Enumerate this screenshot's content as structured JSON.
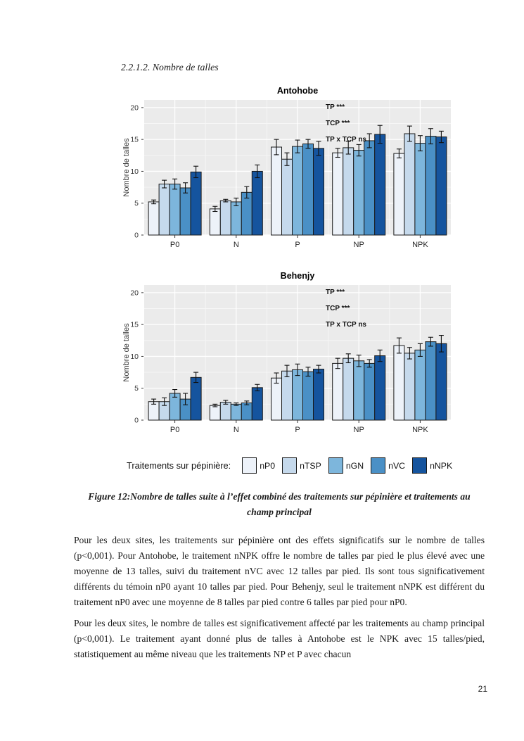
{
  "page": {
    "heading": "2.2.1.2. Nombre de talles",
    "page_number": "21"
  },
  "legend": {
    "label": "Traitements sur pépinière:",
    "items": [
      {
        "label": "nP0",
        "color": "#EDF2F9"
      },
      {
        "label": "nTSP",
        "color": "#C5D9EC"
      },
      {
        "label": "nGN",
        "color": "#7DB6DC"
      },
      {
        "label": "nVC",
        "color": "#4A90C6"
      },
      {
        "label": "nNPK",
        "color": "#15549E"
      }
    ]
  },
  "caption": {
    "text": "Figure 12:Nombre de talles suite à l’effet combiné des traitements sur pépinière et traitements au champ principal"
  },
  "paragraphs": [
    "Pour les deux sites, les traitements sur pépinière ont des effets significatifs sur le nombre de talles (p<0,001). Pour Antohobe, le traitement nNPK offre le nombre de talles par pied le plus élevé avec une moyenne de 13 talles, suivi du traitement nVC avec 12 talles par pied. Ils sont tous significativement différents du témoin nP0 ayant 10 talles par pied. Pour Behenjy, seul le traitement nNPK est différent du traitement nP0 avec une moyenne de 8 talles par pied contre 6 talles par pied pour nP0.",
    "Pour les deux sites, le nombre de talles est significativement affecté par les traitements au champ principal (p<0,001). Le traitement ayant donné plus de talles à Antohobe est le NPK avec 15 talles/pied, statistiquement au même niveau que les traitements NP et P avec chacun"
  ],
  "chart_data": [
    {
      "type": "bar",
      "title": "Antohobe",
      "ylabel": "Nombre de talles",
      "xlabel": "",
      "categories": [
        "P0",
        "N",
        "P",
        "NP",
        "NPK"
      ],
      "yticks": [
        0,
        5,
        10,
        15,
        20
      ],
      "ylim": [
        0,
        21.2
      ],
      "grid": true,
      "panel_color": "#EBEBEB",
      "legend_position": "bottom-shared",
      "annotations": [
        "TP ***",
        "TCP ***",
        "TP x TCP ns"
      ],
      "series": [
        {
          "name": "nP0",
          "values": [
            5.2,
            4.1,
            13.8,
            12.9,
            12.8
          ],
          "errors": [
            0.3,
            0.4,
            1.2,
            0.7,
            0.7
          ]
        },
        {
          "name": "nTSP",
          "values": [
            8.0,
            5.4,
            11.9,
            13.7,
            15.9
          ],
          "errors": [
            0.6,
            0.2,
            1.0,
            1.0,
            1.2
          ]
        },
        {
          "name": "nGN",
          "values": [
            8.0,
            5.2,
            13.9,
            13.3,
            14.4
          ],
          "errors": [
            0.8,
            0.6,
            1.0,
            0.9,
            1.2
          ]
        },
        {
          "name": "nVC",
          "values": [
            7.4,
            6.7,
            14.3,
            14.8,
            15.5
          ],
          "errors": [
            0.8,
            0.9,
            0.7,
            1.1,
            1.2
          ]
        },
        {
          "name": "nNPK",
          "values": [
            9.9,
            10.0,
            13.6,
            15.8,
            15.4
          ],
          "errors": [
            0.9,
            1.0,
            1.1,
            1.4,
            0.9
          ]
        }
      ]
    },
    {
      "type": "bar",
      "title": "Behenjy",
      "ylabel": "Nombre de talles",
      "xlabel": "",
      "categories": [
        "P0",
        "N",
        "P",
        "NP",
        "NPK"
      ],
      "yticks": [
        0,
        5,
        10,
        15,
        20
      ],
      "ylim": [
        0,
        21.2
      ],
      "grid": true,
      "panel_color": "#EBEBEB",
      "legend_position": "bottom-shared",
      "annotations": [
        "TP ***",
        "TCP ***",
        "TP x TCP ns"
      ],
      "series": [
        {
          "name": "nP0",
          "values": [
            2.9,
            2.3,
            6.6,
            8.9,
            11.7
          ],
          "errors": [
            0.4,
            0.2,
            0.8,
            0.8,
            1.2
          ]
        },
        {
          "name": "nTSP",
          "values": [
            2.9,
            2.8,
            7.7,
            9.7,
            10.5
          ],
          "errors": [
            0.6,
            0.3,
            0.9,
            0.7,
            0.9
          ]
        },
        {
          "name": "nGN",
          "values": [
            4.2,
            2.5,
            7.9,
            9.3,
            11.0
          ],
          "errors": [
            0.6,
            0.2,
            0.9,
            0.9,
            1.0
          ]
        },
        {
          "name": "nVC",
          "values": [
            3.3,
            2.7,
            7.6,
            8.9,
            12.3
          ],
          "errors": [
            0.9,
            0.3,
            0.7,
            0.6,
            0.7
          ]
        },
        {
          "name": "nNPK",
          "values": [
            6.7,
            5.1,
            8.0,
            10.1,
            12.0
          ],
          "errors": [
            0.8,
            0.5,
            0.6,
            0.9,
            1.3
          ]
        }
      ]
    }
  ]
}
